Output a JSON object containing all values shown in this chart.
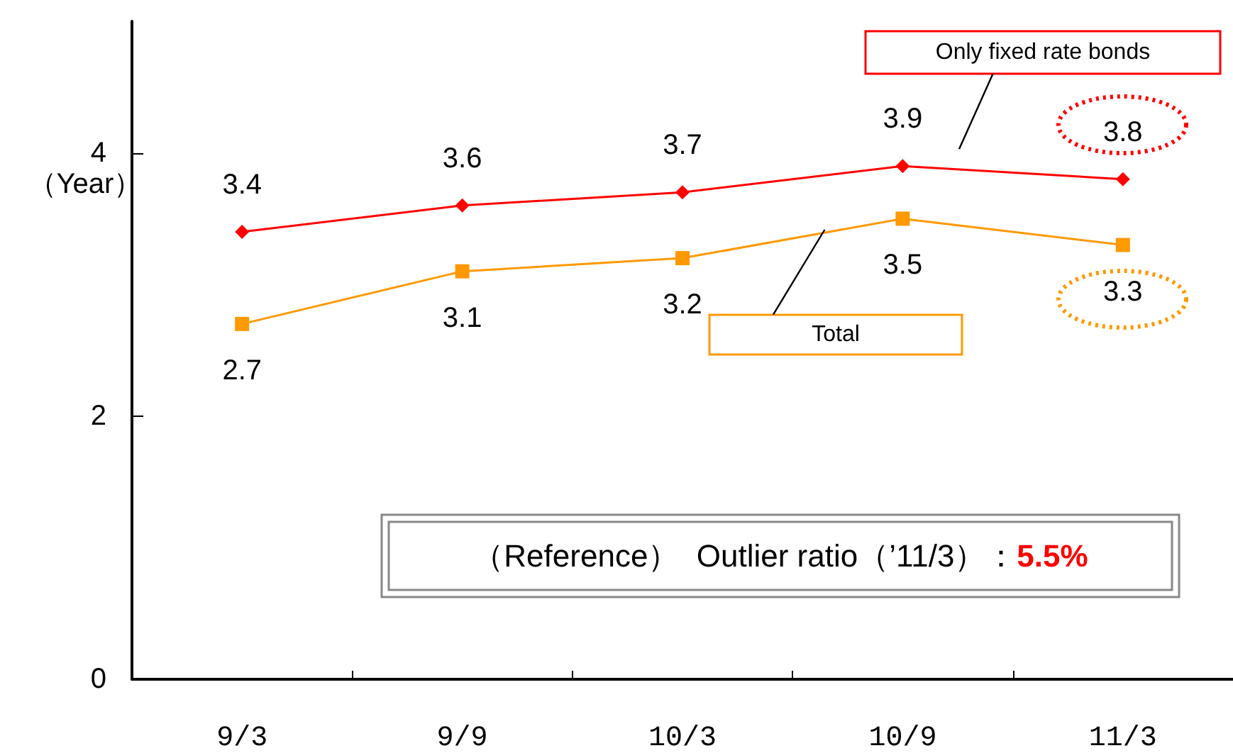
{
  "chart_data": {
    "type": "line",
    "ylabel": "（Year）",
    "categories": [
      "9/3",
      "9/9",
      "10/3",
      "10/9",
      "11/3"
    ],
    "series": [
      {
        "name": "Only fixed rate bonds",
        "color": "#ff0000",
        "marker": "diamond",
        "values": [
          3.4,
          3.6,
          3.7,
          3.9,
          3.8
        ]
      },
      {
        "name": "Total",
        "color": "#ff9900",
        "marker": "square",
        "values": [
          2.7,
          3.1,
          3.2,
          3.5,
          3.3
        ]
      }
    ],
    "ylim": [
      0,
      5
    ],
    "yticks": [
      0,
      2,
      4
    ],
    "grid": false,
    "legend": false,
    "data_labels": true,
    "line_style": "solid",
    "annotations": [
      "（Reference）  Outlier ratio（’11/3）：5.5%"
    ]
  }
}
